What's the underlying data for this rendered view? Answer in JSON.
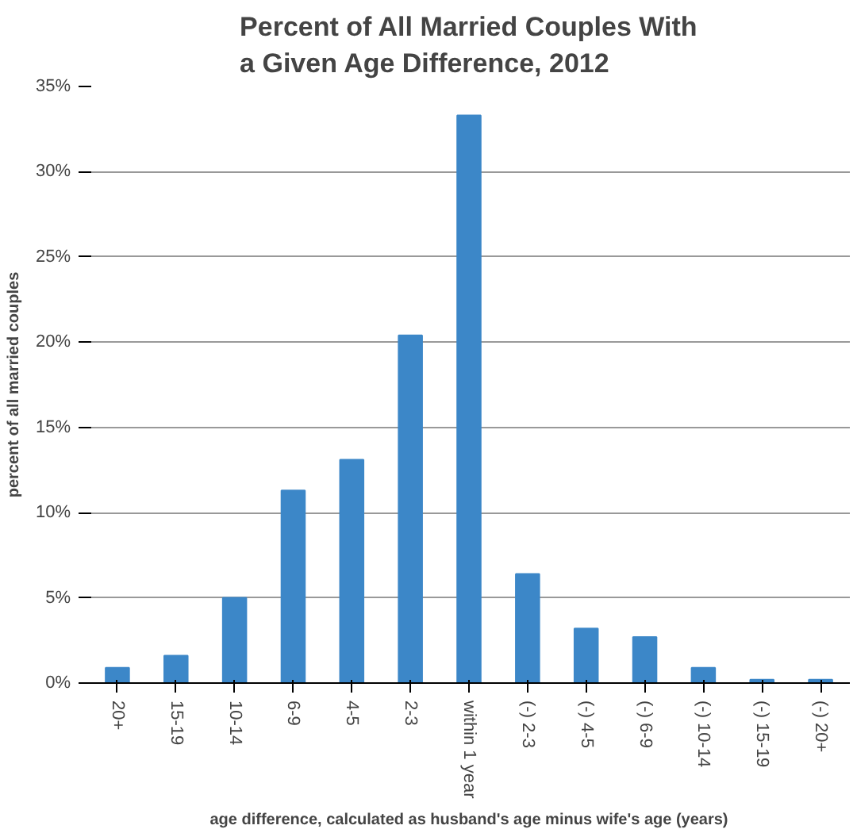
{
  "chart_data": {
    "type": "bar",
    "title": "Percent of All Married Couples With\na Given Age Difference, 2012",
    "xlabel": "age difference, calculated as husband's age minus wife's age (years)",
    "ylabel": "percent of all married couples",
    "categories": [
      "20+",
      "15-19",
      "10-14",
      "6-9",
      "4-5",
      "2-3",
      "within 1 year",
      "(-) 2-3",
      "(-) 4-5",
      "(-) 6-9",
      "(-) 10-14",
      "(-) 15-19",
      "(-) 20+"
    ],
    "values": [
      0.9,
      1.6,
      5.0,
      11.3,
      13.1,
      20.4,
      33.3,
      6.4,
      3.2,
      2.7,
      0.9,
      0.2,
      0.2
    ],
    "color": "#3c87c8",
    "ylim": [
      0,
      35
    ],
    "yticks": [
      {
        "value": 0,
        "label": "0%"
      },
      {
        "value": 5,
        "label": "5%"
      },
      {
        "value": 10,
        "label": "10%"
      },
      {
        "value": 15,
        "label": "15%"
      },
      {
        "value": 20,
        "label": "20%"
      },
      {
        "value": 25,
        "label": "25%"
      },
      {
        "value": 30,
        "label": "30%"
      },
      {
        "value": 35,
        "label": "35%"
      }
    ],
    "grid": "y"
  }
}
